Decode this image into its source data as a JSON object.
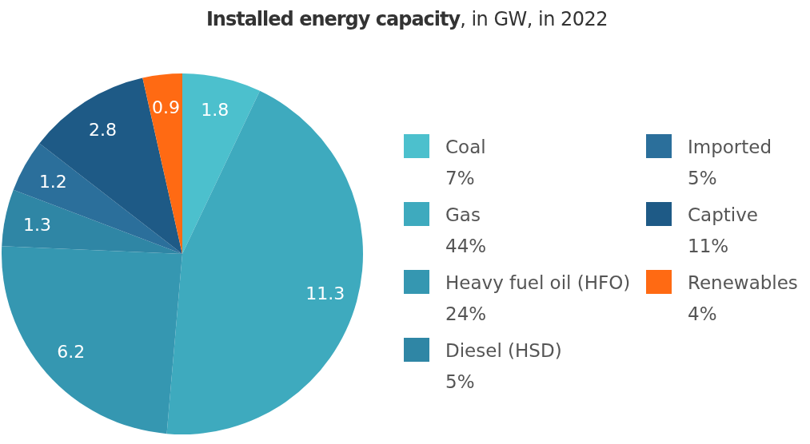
{
  "chart_data": {
    "type": "pie",
    "title": "Installed energy capacity, in GW, in 2022",
    "categories": [
      "Coal",
      "Gas",
      "Heavy fuel oil (HFO)",
      "Diesel (HSD)",
      "Imported",
      "Captive",
      "Renewables"
    ],
    "values": [
      1.8,
      11.3,
      6.2,
      1.3,
      1.2,
      2.8,
      0.9
    ],
    "colors": [
      "#4cc0cd",
      "#3eaabe",
      "#3597b1",
      "#2f86a5",
      "#2b6f9b",
      "#1e5a86",
      "#ff6a13"
    ],
    "annotations": [
      "7%",
      "44%",
      "24%",
      "5%",
      "5%",
      "11%",
      "4%"
    ],
    "data_labels": true,
    "legend": "right"
  }
}
